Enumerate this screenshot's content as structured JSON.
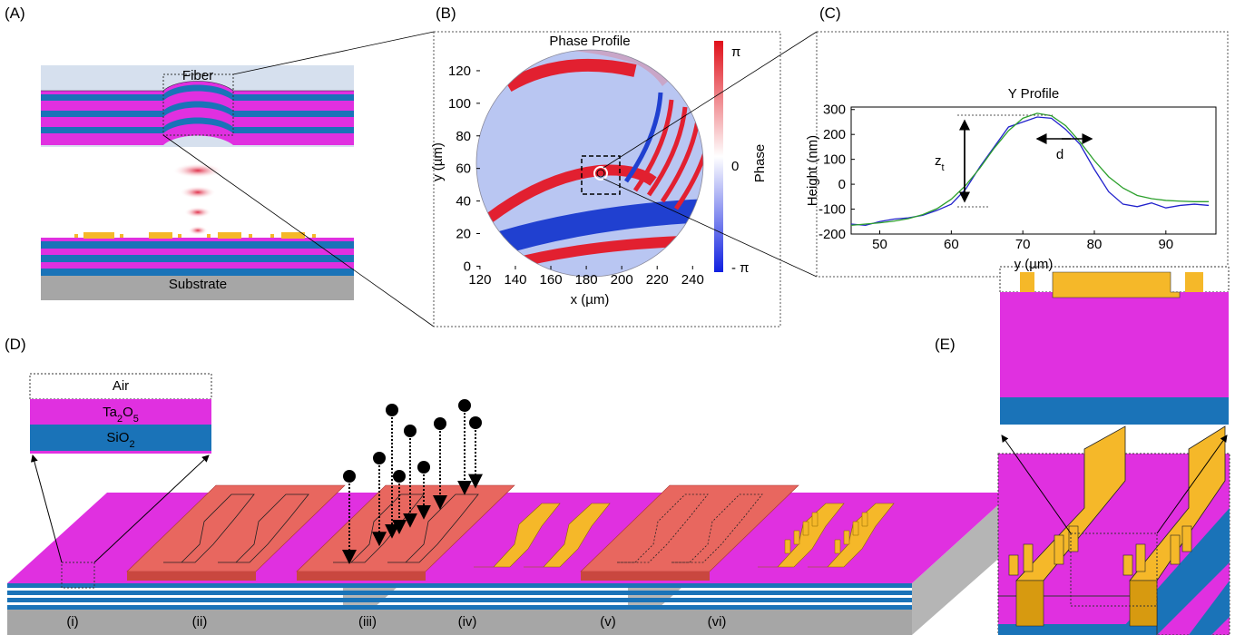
{
  "panel_labels": [
    "(A)",
    "(B)",
    "(C)",
    "(D)",
    "(E)"
  ],
  "panel_a": {
    "fiber": "Fiber",
    "substrate": "Substrate"
  },
  "chart_data": [
    {
      "type": "heatmap",
      "title": "Phase Profile",
      "x_label": "x (µm)",
      "y_label": "y (µm)",
      "xlim": [
        118,
        246
      ],
      "xticks": [
        120,
        140,
        160,
        180,
        200,
        220,
        240
      ],
      "ylim": [
        -2,
        130
      ],
      "yticks": [
        0,
        20,
        40,
        60,
        80,
        100,
        120
      ],
      "colorbar": {
        "label": "Phase",
        "ticks": [
          "π",
          "0",
          "- π"
        ]
      }
    },
    {
      "type": "line",
      "title": "Y Profile",
      "x_label": "y (µm)",
      "y_label": "Height (nm)",
      "xlim": [
        46,
        97
      ],
      "xticks": [
        50,
        60,
        70,
        80,
        90
      ],
      "ylim": [
        -200,
        310
      ],
      "yticks": [
        -200,
        -100,
        0,
        100,
        200,
        300
      ],
      "x": [
        46,
        48,
        50,
        52,
        54,
        56,
        58,
        60,
        62,
        64,
        66,
        68,
        70,
        72,
        74,
        76,
        78,
        80,
        82,
        84,
        86,
        88,
        90,
        92,
        94,
        96
      ],
      "series": [
        {
          "color": "#2222cc",
          "values": [
            -160,
            -165,
            -150,
            -140,
            -135,
            -125,
            -105,
            -80,
            -20,
            70,
            150,
            230,
            250,
            270,
            265,
            220,
            160,
            60,
            -30,
            -80,
            -90,
            -75,
            -95,
            -85,
            -80,
            -85
          ]
        },
        {
          "color": "#2ca02c",
          "values": [
            -165,
            -160,
            -155,
            -148,
            -138,
            -122,
            -98,
            -60,
            -5,
            65,
            145,
            215,
            265,
            285,
            275,
            235,
            170,
            95,
            30,
            -15,
            -45,
            -58,
            -65,
            -68,
            -70,
            -70
          ]
        }
      ],
      "annotations": {
        "height": [
          "z",
          "t"
        ],
        "width": "d"
      }
    }
  ],
  "panel_d": {
    "layers": [
      [
        "Air"
      ],
      [
        "Ta",
        "2",
        "O",
        "5"
      ],
      [
        "SiO",
        "2"
      ]
    ],
    "steps": [
      "(i)",
      "(ii)",
      "(iii)",
      "(iv)",
      "(v)",
      "(vi)"
    ]
  }
}
